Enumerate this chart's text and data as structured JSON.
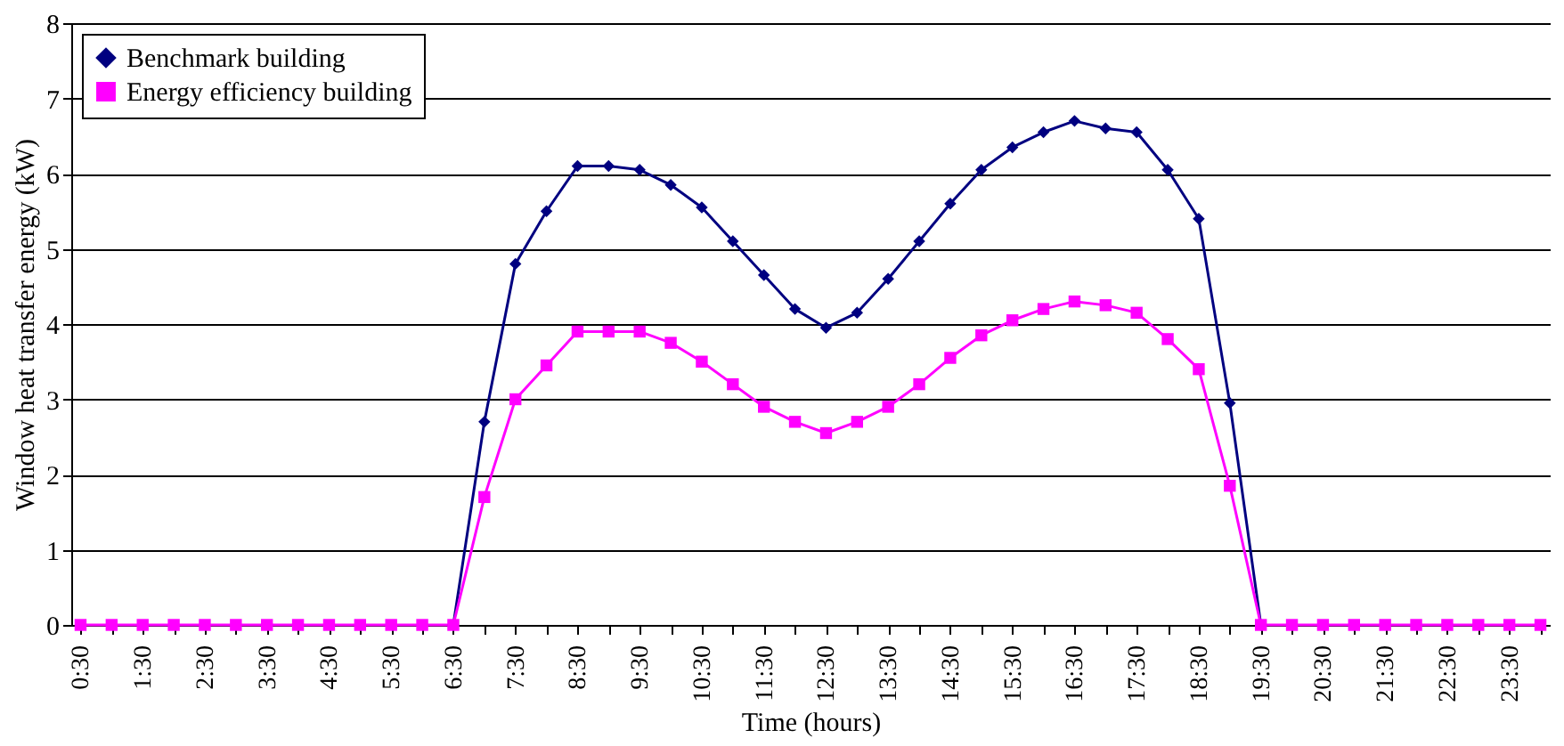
{
  "chart_data": {
    "type": "line",
    "xlabel": "Time (hours)",
    "ylabel": "Window heat transfer energy (kW)",
    "categories": [
      "0:30",
      null,
      "1:30",
      null,
      "2:30",
      null,
      "3:30",
      null,
      "4:30",
      null,
      "5:30",
      null,
      "6:30",
      null,
      "7:30",
      null,
      "8:30",
      null,
      "9:30",
      null,
      "10:30",
      null,
      "11:30",
      null,
      "12:30",
      null,
      "13:30",
      null,
      "14:30",
      null,
      "15:30",
      null,
      "16:30",
      null,
      "17:30",
      null,
      "18:30",
      null,
      "19:30",
      null,
      "20:30",
      null,
      "21:30",
      null,
      "22:30",
      null,
      "23:30",
      null
    ],
    "series": [
      {
        "name": "Benchmark building",
        "color": "#000080",
        "marker": "diamond",
        "values": [
          null,
          null,
          null,
          null,
          null,
          null,
          null,
          null,
          null,
          null,
          null,
          null,
          0,
          2.7,
          4.8,
          5.5,
          6.1,
          6.1,
          6.05,
          5.85,
          5.55,
          5.1,
          4.65,
          4.2,
          3.95,
          4.15,
          4.6,
          5.1,
          5.6,
          6.05,
          6.35,
          6.55,
          6.7,
          6.6,
          6.55,
          6.05,
          5.4,
          2.95,
          0,
          null,
          null,
          null,
          null,
          null,
          null,
          null,
          null,
          null
        ]
      },
      {
        "name": "Energy efficiency building",
        "color": "#ff00ff",
        "marker": "square",
        "values": [
          0,
          0,
          0,
          0,
          0,
          0,
          0,
          0,
          0,
          0,
          0,
          0,
          0,
          1.7,
          3.0,
          3.45,
          3.9,
          3.9,
          3.9,
          3.75,
          3.5,
          3.2,
          2.9,
          2.7,
          2.55,
          2.7,
          2.9,
          3.2,
          3.55,
          3.85,
          4.05,
          4.2,
          4.3,
          4.25,
          4.15,
          3.8,
          3.4,
          1.85,
          0,
          0,
          0,
          0,
          0,
          0,
          0,
          0,
          0,
          0
        ]
      }
    ],
    "ylim": [
      0,
      8
    ],
    "yticks": [
      0,
      1,
      2,
      3,
      4,
      5,
      6,
      7,
      8
    ],
    "grid": "y",
    "legend": "top left",
    "line_style": "solid"
  }
}
